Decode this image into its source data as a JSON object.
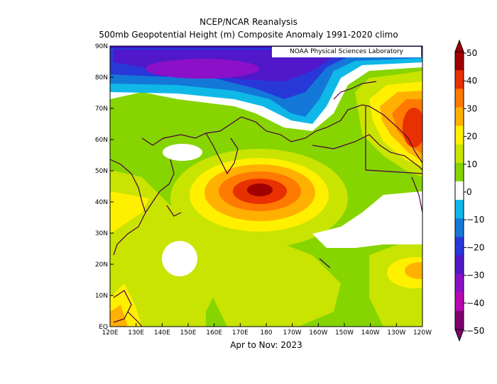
{
  "header": {
    "title": "NCEP/NCAR Reanalysis",
    "subtitle": "500mb Geopotential Height (m) Composite Anomaly 1991-2020 climo"
  },
  "credit": "NOAA Physical Sciences Laboratory",
  "period": "Apr to Nov: 2023",
  "lat_ticks": [
    "90N",
    "80N",
    "70N",
    "60N",
    "50N",
    "40N",
    "30N",
    "20N",
    "10N",
    "EQ"
  ],
  "lon_ticks": [
    "120E",
    "130E",
    "140E",
    "150E",
    "160E",
    "170E",
    "180",
    "170W",
    "160W",
    "150W",
    "140W",
    "130W",
    "120W"
  ],
  "colorbar": {
    "labels": [
      "50",
      "40",
      "30",
      "20",
      "10",
      "0",
      "-10",
      "-20",
      "-30",
      "-40",
      "-50"
    ],
    "colors": [
      "#a00000",
      "#e83000",
      "#ff7a00",
      "#ffb000",
      "#fff000",
      "#c8e400",
      "#86d400",
      "#ffffff",
      "#10b8e8",
      "#1478d8",
      "#2838d8",
      "#5018c8",
      "#8c10c8",
      "#b808b0",
      "#800070"
    ]
  }
}
